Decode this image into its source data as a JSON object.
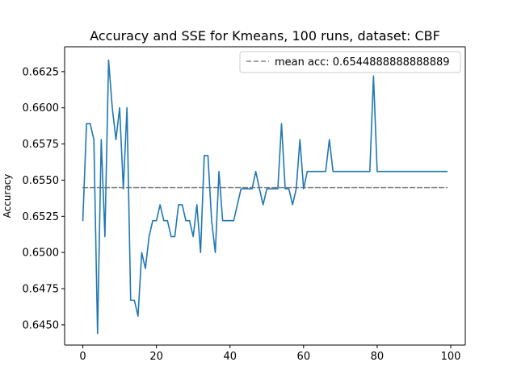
{
  "chart_data": {
    "type": "line",
    "title": "Accuracy and SSE for Kmeans, 100 runs, dataset: CBF",
    "xlabel": "",
    "ylabel": "Accuracy",
    "xlim": [
      -4.95,
      103.95
    ],
    "ylim": [
      0.6436,
      0.66422
    ],
    "xticks": [
      0,
      20,
      40,
      60,
      80,
      100
    ],
    "xtick_labels": [
      "0",
      "20",
      "40",
      "60",
      "80",
      "100"
    ],
    "yticks": [
      0.645,
      0.6475,
      0.65,
      0.6525,
      0.655,
      0.6575,
      0.66,
      0.6625
    ],
    "ytick_labels": [
      "0.6450",
      "0.6475",
      "0.6500",
      "0.6525",
      "0.6550",
      "0.6575",
      "0.6600",
      "0.6625"
    ],
    "grid": false,
    "legend_position": "top-right",
    "series": [
      {
        "color": "#1f77b4",
        "x": [
          0,
          1,
          2,
          3,
          4,
          5,
          6,
          7,
          8,
          9,
          10,
          11,
          12,
          13,
          14,
          15,
          16,
          17,
          18,
          19,
          20,
          21,
          22,
          23,
          24,
          25,
          26,
          27,
          28,
          29,
          30,
          31,
          32,
          33,
          34,
          35,
          36,
          37,
          38,
          39,
          40,
          41,
          42,
          43,
          44,
          45,
          46,
          47,
          48,
          49,
          50,
          51,
          52,
          53,
          54,
          55,
          56,
          57,
          58,
          59,
          60,
          61,
          62,
          63,
          64,
          65,
          66,
          67,
          68,
          69,
          70,
          71,
          72,
          73,
          74,
          75,
          76,
          77,
          78,
          79,
          80,
          81,
          82,
          83,
          84,
          85,
          86,
          87,
          88,
          89,
          90,
          91,
          92,
          93,
          94,
          95,
          96,
          97,
          98,
          99
        ],
        "values": [
          0.6522,
          0.6589,
          0.6589,
          0.6578,
          0.6444,
          0.6578,
          0.6511,
          0.6633,
          0.66,
          0.6578,
          0.66,
          0.6544,
          0.66,
          0.6467,
          0.6467,
          0.6456,
          0.65,
          0.6489,
          0.6511,
          0.6522,
          0.6522,
          0.6533,
          0.6522,
          0.6522,
          0.6511,
          0.6511,
          0.6533,
          0.6533,
          0.6522,
          0.6522,
          0.6511,
          0.6533,
          0.65,
          0.6567,
          0.6567,
          0.6522,
          0.65,
          0.6556,
          0.6522,
          0.6522,
          0.6522,
          0.6522,
          0.6533,
          0.6544,
          0.6544,
          0.6544,
          0.6544,
          0.6556,
          0.6544,
          0.6533,
          0.6544,
          0.6544,
          0.6544,
          0.6544,
          0.6589,
          0.6544,
          0.6544,
          0.6533,
          0.6544,
          0.6578,
          0.6544,
          0.6556,
          0.6556,
          0.6556,
          0.6556,
          0.6556,
          0.6556,
          0.6578,
          0.6556,
          0.6556,
          0.6556,
          0.6556,
          0.6556,
          0.6556,
          0.6556,
          0.6556,
          0.6556,
          0.6556,
          0.6556,
          0.6622,
          0.6556,
          0.6556,
          0.6556,
          0.6556,
          0.6556,
          0.6556,
          0.6556,
          0.6556,
          0.6556,
          0.6556,
          0.6556,
          0.6556,
          0.6556,
          0.6556,
          0.6556,
          0.6556,
          0.6556,
          0.6556,
          0.6556,
          0.6556
        ]
      },
      {
        "name": "mean acc: 0.6544888888888889",
        "color": "#808080",
        "style": "dashed",
        "x": [
          0,
          99
        ],
        "values": [
          0.6544888888888889,
          0.6544888888888889
        ]
      }
    ]
  }
}
